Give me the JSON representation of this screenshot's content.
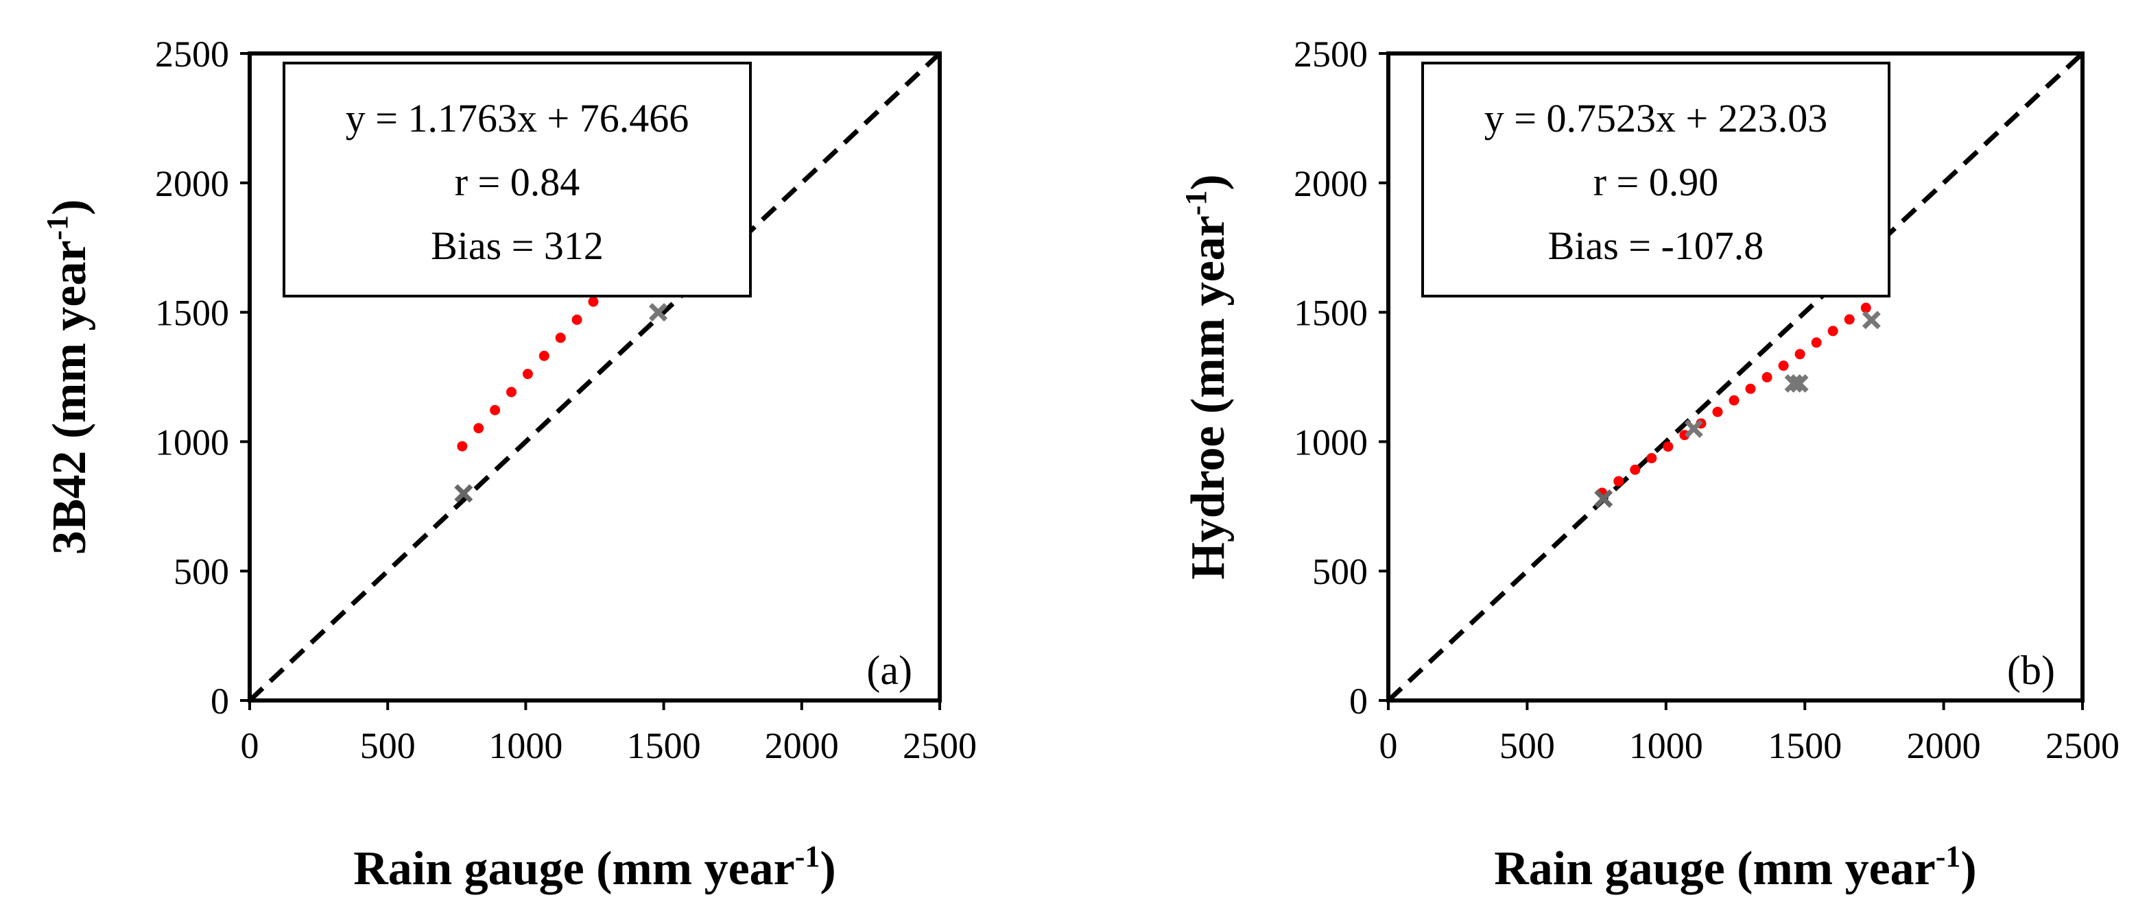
{
  "chart_data": [
    {
      "id": "a",
      "type": "scatter",
      "panel_label": "(a)",
      "xlabel": "Rain gauge (mm year",
      "xlabel_sup": "-1",
      "xlabel_suffix": ")",
      "ylabel": "3B42 (mm year",
      "ylabel_sup": "-1",
      "ylabel_suffix": ")",
      "xlim": [
        0,
        2500
      ],
      "ylim": [
        0,
        2500
      ],
      "xticks": [
        "0",
        "500",
        "1000",
        "1500",
        "2000",
        "2500"
      ],
      "yticks": [
        "0",
        "500",
        "1000",
        "1500",
        "2000",
        "2500"
      ],
      "stats": {
        "equation": "y = 1.1763x + 76.466",
        "r": "r = 0.84",
        "bias": "Bias = 312"
      },
      "reference_line": {
        "label": "1:1 line",
        "x": [
          0,
          2500
        ],
        "y": [
          0,
          2500
        ],
        "color": "#000000"
      },
      "regression": {
        "slope": 1.1763,
        "intercept": 76.466,
        "x_range": [
          770,
          1720
        ],
        "color": "#ff0000"
      },
      "series": [
        {
          "name": "stations",
          "color": "#888888",
          "marker": "x",
          "points": [
            {
              "x": 775,
              "y": 800,
              "color": "#666666"
            },
            {
              "x": 1100,
              "y": 1800,
              "color": "#bbbbbb"
            },
            {
              "x": 1460,
              "y": 1680,
              "color": "#cccccc"
            },
            {
              "x": 1480,
              "y": 1500,
              "color": "#777777"
            },
            {
              "x": 1500,
              "y": 1855,
              "color": "#aaaaaa"
            }
          ]
        }
      ]
    },
    {
      "id": "b",
      "type": "scatter",
      "panel_label": "(b)",
      "xlabel": "Rain gauge (mm year",
      "xlabel_sup": "-1",
      "xlabel_suffix": ")",
      "ylabel": "Hydroe (mm year",
      "ylabel_sup": "-1",
      "ylabel_suffix": ")",
      "xlim": [
        0,
        2500
      ],
      "ylim": [
        0,
        2500
      ],
      "xticks": [
        "0",
        "500",
        "1000",
        "1500",
        "2000",
        "2500"
      ],
      "yticks": [
        "0",
        "500",
        "1000",
        "1500",
        "2000",
        "2500"
      ],
      "stats": {
        "equation": "y = 0.7523x + 223.03",
        "r": "r = 0.90",
        "bias": "Bias = -107.8"
      },
      "reference_line": {
        "label": "1:1 line",
        "x": [
          0,
          2500
        ],
        "y": [
          0,
          2500
        ],
        "color": "#000000"
      },
      "regression": {
        "slope": 0.7523,
        "intercept": 223.03,
        "x_range": [
          770,
          1720
        ],
        "color": "#ff0000"
      },
      "series": [
        {
          "name": "stations",
          "color": "#888888",
          "marker": "x",
          "points": [
            {
              "x": 775,
              "y": 780,
              "color": "#666666"
            },
            {
              "x": 1100,
              "y": 1050,
              "color": "#777777"
            },
            {
              "x": 1460,
              "y": 1225,
              "color": "#777777"
            },
            {
              "x": 1480,
              "y": 1225,
              "color": "#777777"
            },
            {
              "x": 1510,
              "y": 1590,
              "color": "#cccccc"
            },
            {
              "x": 1740,
              "y": 1470,
              "color": "#777777"
            }
          ]
        }
      ]
    }
  ]
}
